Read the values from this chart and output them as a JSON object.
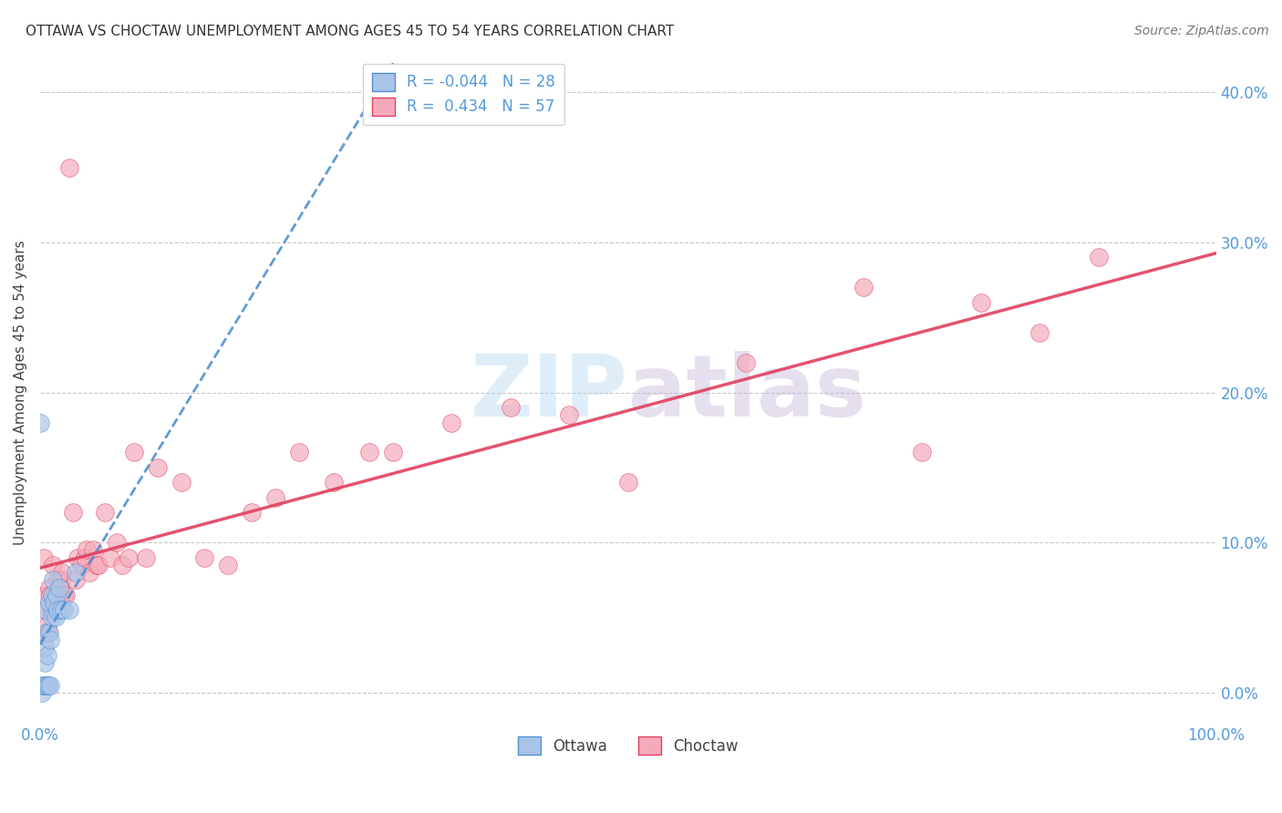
{
  "title": "OTTAWA VS CHOCTAW UNEMPLOYMENT AMONG AGES 45 TO 54 YEARS CORRELATION CHART",
  "source": "Source: ZipAtlas.com",
  "ylabel": "Unemployment Among Ages 45 to 54 years",
  "ottawa_color": "#aac4e8",
  "choctaw_color": "#f5aabb",
  "ottawa_line_color": "#5090d0",
  "choctaw_line_color": "#e04060",
  "ottawa_R": -0.044,
  "ottawa_N": 28,
  "choctaw_R": 0.434,
  "choctaw_N": 57,
  "xlim": [
    0,
    1.0
  ],
  "ylim": [
    -0.02,
    0.42
  ],
  "watermark": "ZIPatlas",
  "tick_color": "#5599dd",
  "ottawa_x": [
    0.0,
    0.002,
    0.002,
    0.003,
    0.003,
    0.004,
    0.004,
    0.005,
    0.005,
    0.006,
    0.006,
    0.007,
    0.008,
    0.008,
    0.009,
    0.009,
    0.01,
    0.01,
    0.011,
    0.012,
    0.013,
    0.014,
    0.015,
    0.016,
    0.018,
    0.02,
    0.025,
    0.03
  ],
  "ottawa_y": [
    0.18,
    0.0,
    0.005,
    0.005,
    0.055,
    0.02,
    0.03,
    0.005,
    0.04,
    0.005,
    0.025,
    0.005,
    0.04,
    0.06,
    0.005,
    0.035,
    0.05,
    0.065,
    0.075,
    0.06,
    0.05,
    0.065,
    0.055,
    0.07,
    0.055,
    0.055,
    0.055,
    0.08
  ],
  "choctaw_x": [
    0.003,
    0.004,
    0.005,
    0.006,
    0.007,
    0.008,
    0.009,
    0.01,
    0.011,
    0.012,
    0.013,
    0.014,
    0.015,
    0.016,
    0.017,
    0.018,
    0.019,
    0.02,
    0.022,
    0.025,
    0.028,
    0.03,
    0.032,
    0.035,
    0.038,
    0.04,
    0.042,
    0.045,
    0.048,
    0.05,
    0.055,
    0.06,
    0.065,
    0.07,
    0.075,
    0.08,
    0.09,
    0.1,
    0.12,
    0.14,
    0.16,
    0.18,
    0.2,
    0.22,
    0.25,
    0.28,
    0.3,
    0.35,
    0.4,
    0.45,
    0.5,
    0.6,
    0.7,
    0.75,
    0.8,
    0.85,
    0.9
  ],
  "choctaw_y": [
    0.09,
    0.065,
    0.055,
    0.045,
    0.04,
    0.07,
    0.065,
    0.055,
    0.085,
    0.06,
    0.065,
    0.055,
    0.075,
    0.065,
    0.07,
    0.075,
    0.08,
    0.065,
    0.065,
    0.35,
    0.12,
    0.075,
    0.09,
    0.085,
    0.09,
    0.095,
    0.08,
    0.095,
    0.085,
    0.085,
    0.12,
    0.09,
    0.1,
    0.085,
    0.09,
    0.16,
    0.09,
    0.15,
    0.14,
    0.09,
    0.085,
    0.12,
    0.13,
    0.16,
    0.14,
    0.16,
    0.16,
    0.18,
    0.19,
    0.185,
    0.14,
    0.22,
    0.27,
    0.16,
    0.26,
    0.24,
    0.29
  ]
}
